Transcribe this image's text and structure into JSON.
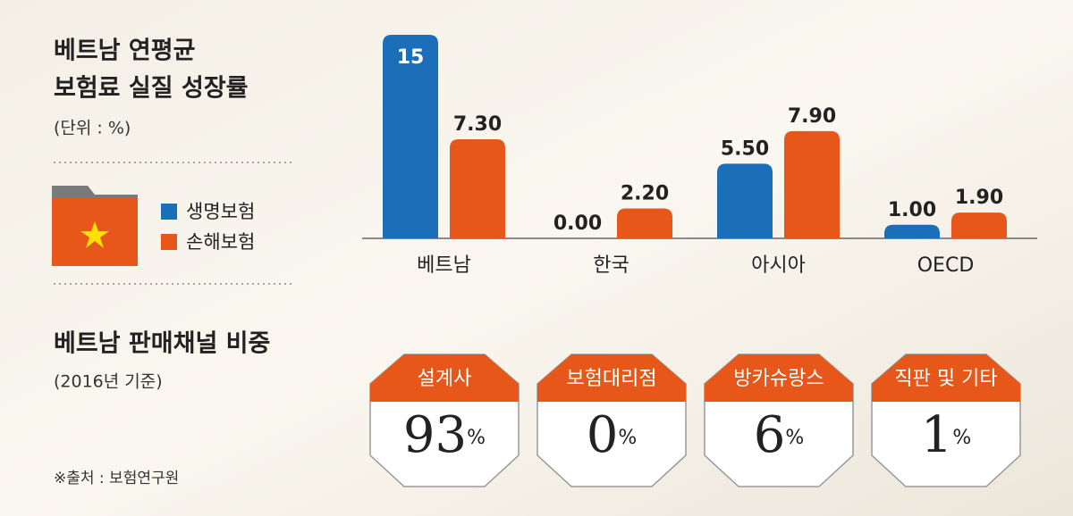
{
  "title_lines": [
    "베트남 연평균",
    "보험료 실질 성장률"
  ],
  "unit_note": "(단위 : %)",
  "source": "※출처 : 보험연구원",
  "chart_data": [
    {
      "type": "bar",
      "categories": [
        "베트남",
        "한국",
        "아시아",
        "OECD"
      ],
      "series": [
        {
          "name": "생명보험",
          "color": "#1a6fb8",
          "values": [
            15,
            0,
            5.5,
            1
          ],
          "value_labels": [
            "15",
            "0.00",
            "5.50",
            "1.00"
          ]
        },
        {
          "name": "손해보험",
          "color": "#e8571a",
          "values": [
            7.3,
            2.2,
            7.9,
            1.9
          ],
          "value_labels": [
            "7.30",
            "2.20",
            "7.90",
            "1.90"
          ]
        }
      ]
    },
    {
      "type": "badge",
      "title": "베트남 판매채널 비중",
      "subtitle": "(2016년 기준)",
      "categories": [
        "설계사",
        "보험대리점",
        "방카슈랑스",
        "직판 및 기타"
      ],
      "values": [
        93,
        0,
        6,
        1
      ],
      "value_suffix": "%",
      "color": "#e8571a"
    }
  ]
}
